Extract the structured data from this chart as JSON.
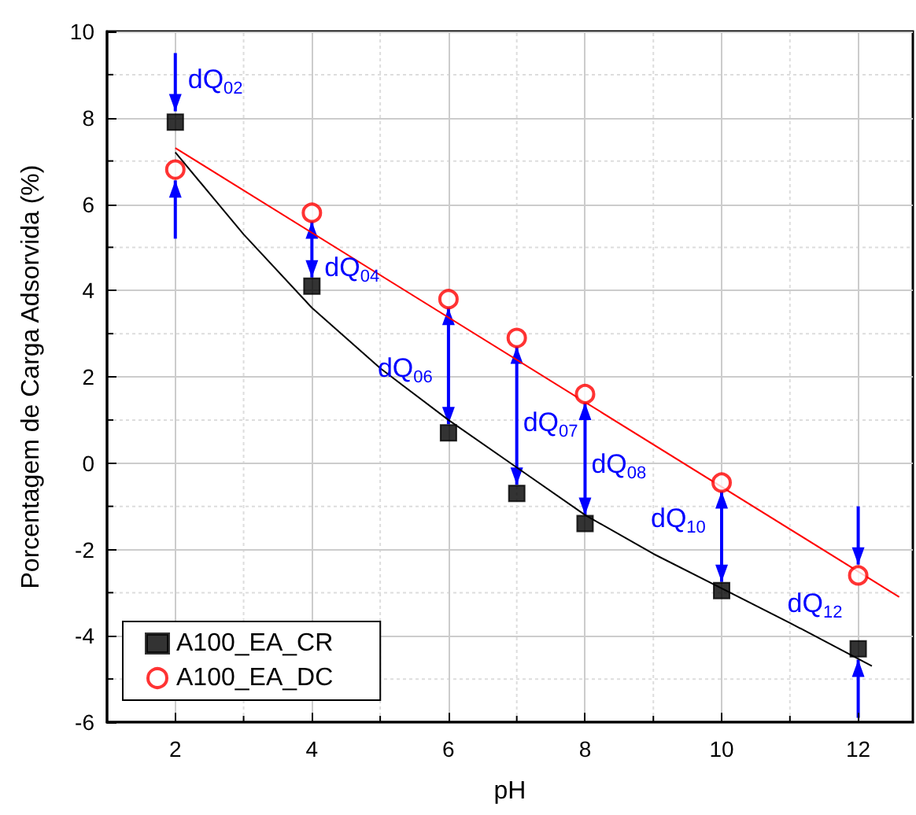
{
  "chart_data": {
    "type": "scatter",
    "xlabel": "pH",
    "ylabel": "Porcentagem de Carga Adsorvida (%)",
    "xlim": [
      1,
      12.8
    ],
    "xticks": [
      2,
      4,
      6,
      8,
      10,
      12
    ],
    "ylim": [
      -6,
      10
    ],
    "yticks": [
      -6,
      -4,
      -2,
      0,
      2,
      4,
      6,
      8,
      10
    ],
    "grid": true,
    "legend": "bottom left",
    "series": [
      {
        "name": "A100_EA_CR",
        "color": "#000000",
        "marker": "square",
        "x": [
          2,
          4,
          6,
          7,
          8,
          10,
          12
        ],
        "values": [
          7.9,
          4.1,
          0.7,
          -0.7,
          -1.4,
          -2.95,
          -4.3
        ]
      },
      {
        "name": "A100_EA_DC",
        "color": "#ff0000",
        "marker": "circle",
        "x": [
          2,
          4,
          6,
          7,
          8,
          10,
          12
        ],
        "values": [
          6.8,
          5.8,
          3.8,
          2.9,
          1.6,
          -0.45,
          -2.6
        ]
      },
      {
        "type": "line",
        "color": "#000000",
        "marker": "none",
        "x": [
          2,
          3,
          4,
          5,
          6,
          7,
          8,
          9,
          10,
          11,
          12.2
        ],
        "values": [
          7.2,
          5.3,
          3.6,
          2.2,
          1.0,
          -0.1,
          -1.2,
          -2.1,
          -2.9,
          -3.7,
          -4.7
        ]
      },
      {
        "type": "line",
        "color": "#ff0000",
        "marker": "none",
        "x": [
          2,
          12.6
        ],
        "values": [
          7.3,
          -3.1
        ]
      }
    ],
    "annotations": [
      {
        "text": "dQ$_{02}$",
        "x": 2,
        "y": 7.9
      },
      {
        "text": "dQ$_{04}$",
        "x": 4,
        "y": 4.1
      },
      {
        "text": "dQ$_{06}$",
        "x": 6,
        "y": 0.7
      },
      {
        "text": "dQ$_{07}$",
        "x": 7,
        "y": -0.7
      },
      {
        "text": "dQ$_{08}$",
        "x": 8,
        "y": -1.4
      },
      {
        "text": "dQ$_{10}$",
        "x": 10,
        "y": -2.95
      },
      {
        "text": "dQ$_{12}$",
        "x": 12,
        "y": -4.3
      }
    ]
  }
}
